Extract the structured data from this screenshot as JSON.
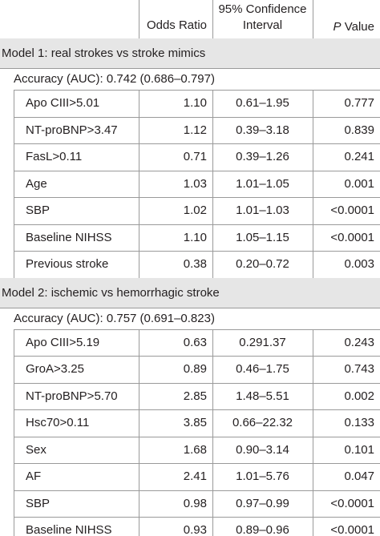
{
  "table": {
    "header": [
      "Odds Ratio",
      "95% Confidence Interval",
      {
        "italic": "P",
        "text": "Value"
      }
    ],
    "sections": [
      {
        "title": "Model 1: real strokes vs stroke mimics",
        "accuracy": "Accuracy (AUC): 0.742 (0.686–0.797)",
        "rows": [
          [
            "Apo CIII>5.01",
            "1.10",
            "0.61–1.95",
            "0.777"
          ],
          [
            "NT-proBNP>3.47",
            "1.12",
            "0.39–3.18",
            "0.839"
          ],
          [
            "FasL>0.11",
            "0.71",
            "0.39–1.26",
            "0.241"
          ],
          [
            "Age",
            "1.03",
            "1.01–1.05",
            "0.001"
          ],
          [
            "SBP",
            "1.02",
            "1.01–1.03",
            "<0.0001"
          ],
          [
            "Baseline NIHSS",
            "1.10",
            "1.05–1.15",
            "<0.0001"
          ],
          [
            "Previous stroke",
            "0.38",
            "0.20–0.72",
            "0.003"
          ]
        ]
      },
      {
        "title": "Model 2: ischemic vs hemorrhagic stroke",
        "accuracy": "Accuracy (AUC): 0.757 (0.691–0.823)",
        "rows": [
          [
            "Apo CIII>5.19",
            "0.63",
            "0.291.37",
            "0.243"
          ],
          [
            "GroA>3.25",
            "0.89",
            "0.46–1.75",
            "0.743"
          ],
          [
            "NT-proBNP>5.70",
            "2.85",
            "1.48–5.51",
            "0.002"
          ],
          [
            "Hsc70>0.11",
            "3.85",
            "0.66–22.32",
            "0.133"
          ],
          [
            "Sex",
            "1.68",
            "0.90–3.14",
            "0.101"
          ],
          [
            "AF",
            "2.41",
            "1.01–5.76",
            "0.047"
          ],
          [
            "SBP",
            "0.98",
            "0.97–0.99",
            "<0.0001"
          ],
          [
            "Baseline NIHSS",
            "0.93",
            "0.89–0.96",
            "<0.0001"
          ]
        ]
      }
    ]
  }
}
